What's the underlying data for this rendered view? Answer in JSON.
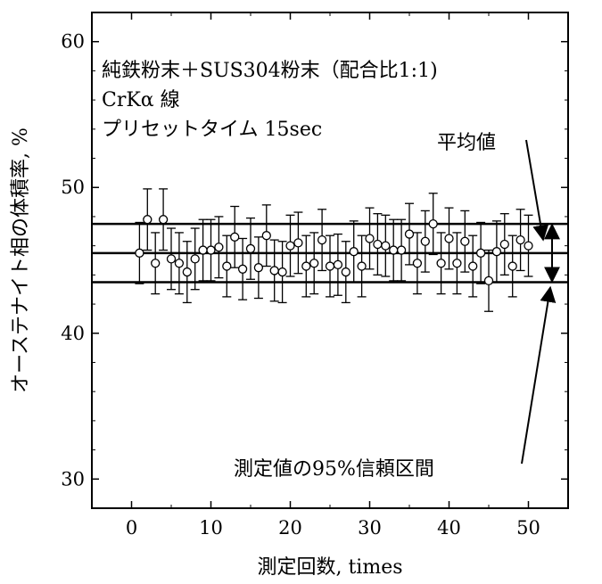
{
  "chart_data": {
    "type": "scatter",
    "title_lines": [
      "純鉄粉末＋SUS304粉末（配合比1:1)",
      "CrKα 線",
      "プリセットタイム  15sec"
    ],
    "xlabel": "測定回数, times",
    "ylabel": "オーステナイト相の体積率, %",
    "xlim": [
      -5,
      55
    ],
    "ylim": [
      28,
      62
    ],
    "xticks": [
      0,
      10,
      20,
      30,
      40,
      50
    ],
    "yticks": [
      30,
      40,
      50,
      60
    ],
    "error_bar": 2.1,
    "mean": 45.5,
    "ci_upper": 47.5,
    "ci_lower": 43.5,
    "x": [
      1,
      2,
      3,
      4,
      5,
      6,
      7,
      8,
      9,
      10,
      11,
      12,
      13,
      14,
      15,
      16,
      17,
      18,
      19,
      20,
      21,
      22,
      23,
      24,
      25,
      26,
      27,
      28,
      29,
      30,
      31,
      32,
      33,
      34,
      35,
      36,
      37,
      38,
      39,
      40,
      41,
      42,
      43,
      44,
      45,
      46,
      47,
      48,
      49,
      50
    ],
    "y": [
      45.5,
      47.8,
      44.8,
      47.8,
      45.1,
      44.8,
      44.2,
      45.1,
      45.7,
      45.7,
      45.9,
      44.6,
      46.6,
      44.4,
      45.8,
      44.5,
      46.7,
      44.3,
      44.2,
      46.0,
      46.2,
      44.6,
      44.8,
      46.4,
      44.6,
      44.7,
      44.2,
      45.6,
      44.6,
      46.5,
      46.1,
      46.0,
      45.7,
      45.7,
      46.8,
      44.8,
      46.3,
      47.5,
      44.8,
      46.5,
      44.8,
      46.3,
      44.6,
      45.5,
      43.6,
      45.6,
      46.1,
      44.6,
      46.4,
      46.0
    ],
    "annotations": {
      "mean_label": "平均値",
      "ci_label": "測定値の95%信頼区間"
    }
  }
}
